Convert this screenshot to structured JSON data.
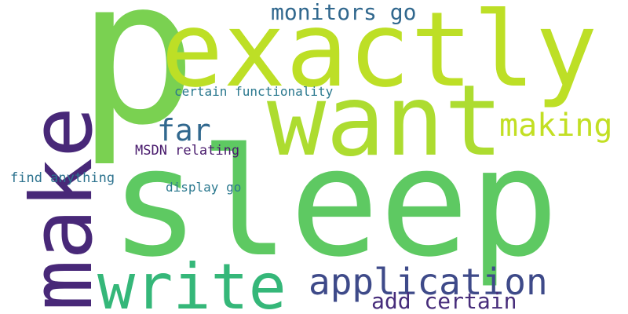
{
  "words": [
    {
      "text": "p",
      "color": "#7ad151"
    },
    {
      "text": "exactly",
      "color": "#bddf26"
    },
    {
      "text": "sleep",
      "color": "#5ec962"
    },
    {
      "text": "want",
      "color": "#addc30"
    },
    {
      "text": "make",
      "color": "#482878"
    },
    {
      "text": "write",
      "color": "#35b779"
    },
    {
      "text": "application",
      "color": "#3e4a89"
    },
    {
      "text": "add certain",
      "color": "#472d7b"
    },
    {
      "text": "monitors go",
      "color": "#31688e"
    },
    {
      "text": "making",
      "color": "#c2df23"
    },
    {
      "text": "far",
      "color": "#31688e"
    },
    {
      "text": "certain functionality",
      "color": "#2a788e"
    },
    {
      "text": "MSDN relating",
      "color": "#481a6c"
    },
    {
      "text": "find anything",
      "color": "#2c728e"
    },
    {
      "text": "display go",
      "color": "#2a788e"
    }
  ]
}
